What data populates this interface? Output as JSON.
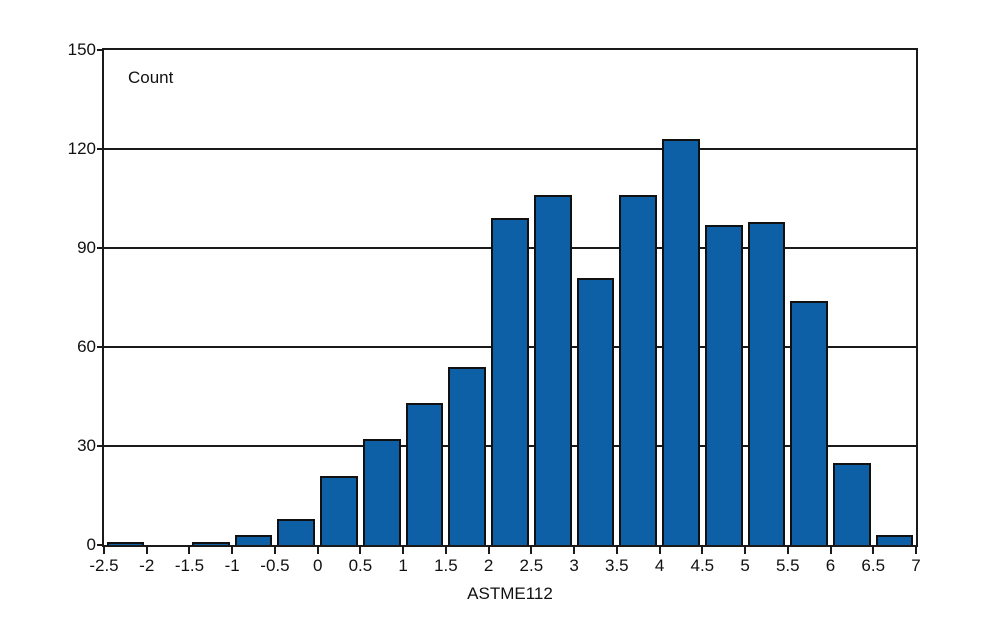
{
  "chart_data": {
    "type": "bar",
    "subtype": "histogram",
    "title": "",
    "ylabel": "Count",
    "xlabel": "ASTME112",
    "ylim": [
      0,
      150
    ],
    "xlim": [
      -2.5,
      7
    ],
    "bin_width": 0.5,
    "bin_edges": [
      -2.5,
      -2,
      -1.5,
      -1,
      -0.5,
      0,
      0.5,
      1,
      1.5,
      2,
      2.5,
      3,
      3.5,
      4,
      4.5,
      5,
      5.5,
      6,
      6.5,
      7
    ],
    "values": [
      1,
      0,
      1,
      3,
      8,
      21,
      32,
      43,
      54,
      99,
      106,
      81,
      106,
      123,
      97,
      98,
      74,
      25,
      3
    ],
    "y_ticks": [
      "0",
      "30",
      "60",
      "90",
      "120",
      "150"
    ],
    "x_ticks": [
      "-2.5",
      "-2",
      "-1.5",
      "-1",
      "-0.5",
      "0",
      "0.5",
      "1",
      "1.5",
      "2",
      "2.5",
      "3",
      "3.5",
      "4",
      "4.5",
      "5",
      "5.5",
      "6",
      "6.5",
      "7"
    ],
    "grid": "horizontal",
    "legend": "none",
    "colors": {
      "bar_fill": "#0E60A6",
      "bar_border": "#111111",
      "axis": "#1a1a1a",
      "text": "#111111",
      "background": "#ffffff"
    }
  }
}
